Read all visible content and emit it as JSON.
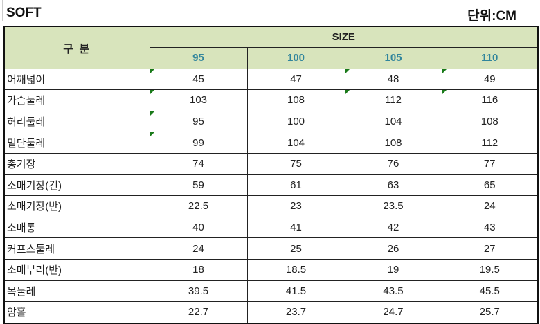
{
  "title": "SOFT",
  "unit": "단위:CM",
  "header": {
    "category": "구 분",
    "size": "SIZE",
    "sizes": [
      "95",
      "100",
      "105",
      "110"
    ]
  },
  "colors": {
    "header_bg": "#d8e4bc",
    "size_text": "#31859c",
    "marker": "#1a7a1a"
  },
  "rows": [
    {
      "label": "어깨넓이",
      "values": [
        "45",
        "47",
        "48",
        "49"
      ]
    },
    {
      "label": "가슴둘레",
      "values": [
        "103",
        "108",
        "112",
        "116"
      ]
    },
    {
      "label": "허리둘레",
      "values": [
        "95",
        "100",
        "104",
        "108"
      ]
    },
    {
      "label": "밑단둘레",
      "values": [
        "99",
        "104",
        "108",
        "112"
      ]
    },
    {
      "label": "총기장",
      "values": [
        "74",
        "75",
        "76",
        "77"
      ]
    },
    {
      "label": "소매기장(긴)",
      "values": [
        "59",
        "61",
        "63",
        "65"
      ]
    },
    {
      "label": "소매기장(반)",
      "values": [
        "22.5",
        "23",
        "23.5",
        "24"
      ]
    },
    {
      "label": "소매통",
      "values": [
        "40",
        "41",
        "42",
        "43"
      ]
    },
    {
      "label": "커프스둘레",
      "values": [
        "24",
        "25",
        "26",
        "27"
      ]
    },
    {
      "label": "소매부리(반)",
      "values": [
        "18",
        "18.5",
        "19",
        "19.5"
      ]
    },
    {
      "label": "목둘레",
      "values": [
        "39.5",
        "41.5",
        "43.5",
        "45.5"
      ]
    },
    {
      "label": "암홀",
      "values": [
        "22.7",
        "23.7",
        "24.7",
        "25.7"
      ]
    }
  ]
}
